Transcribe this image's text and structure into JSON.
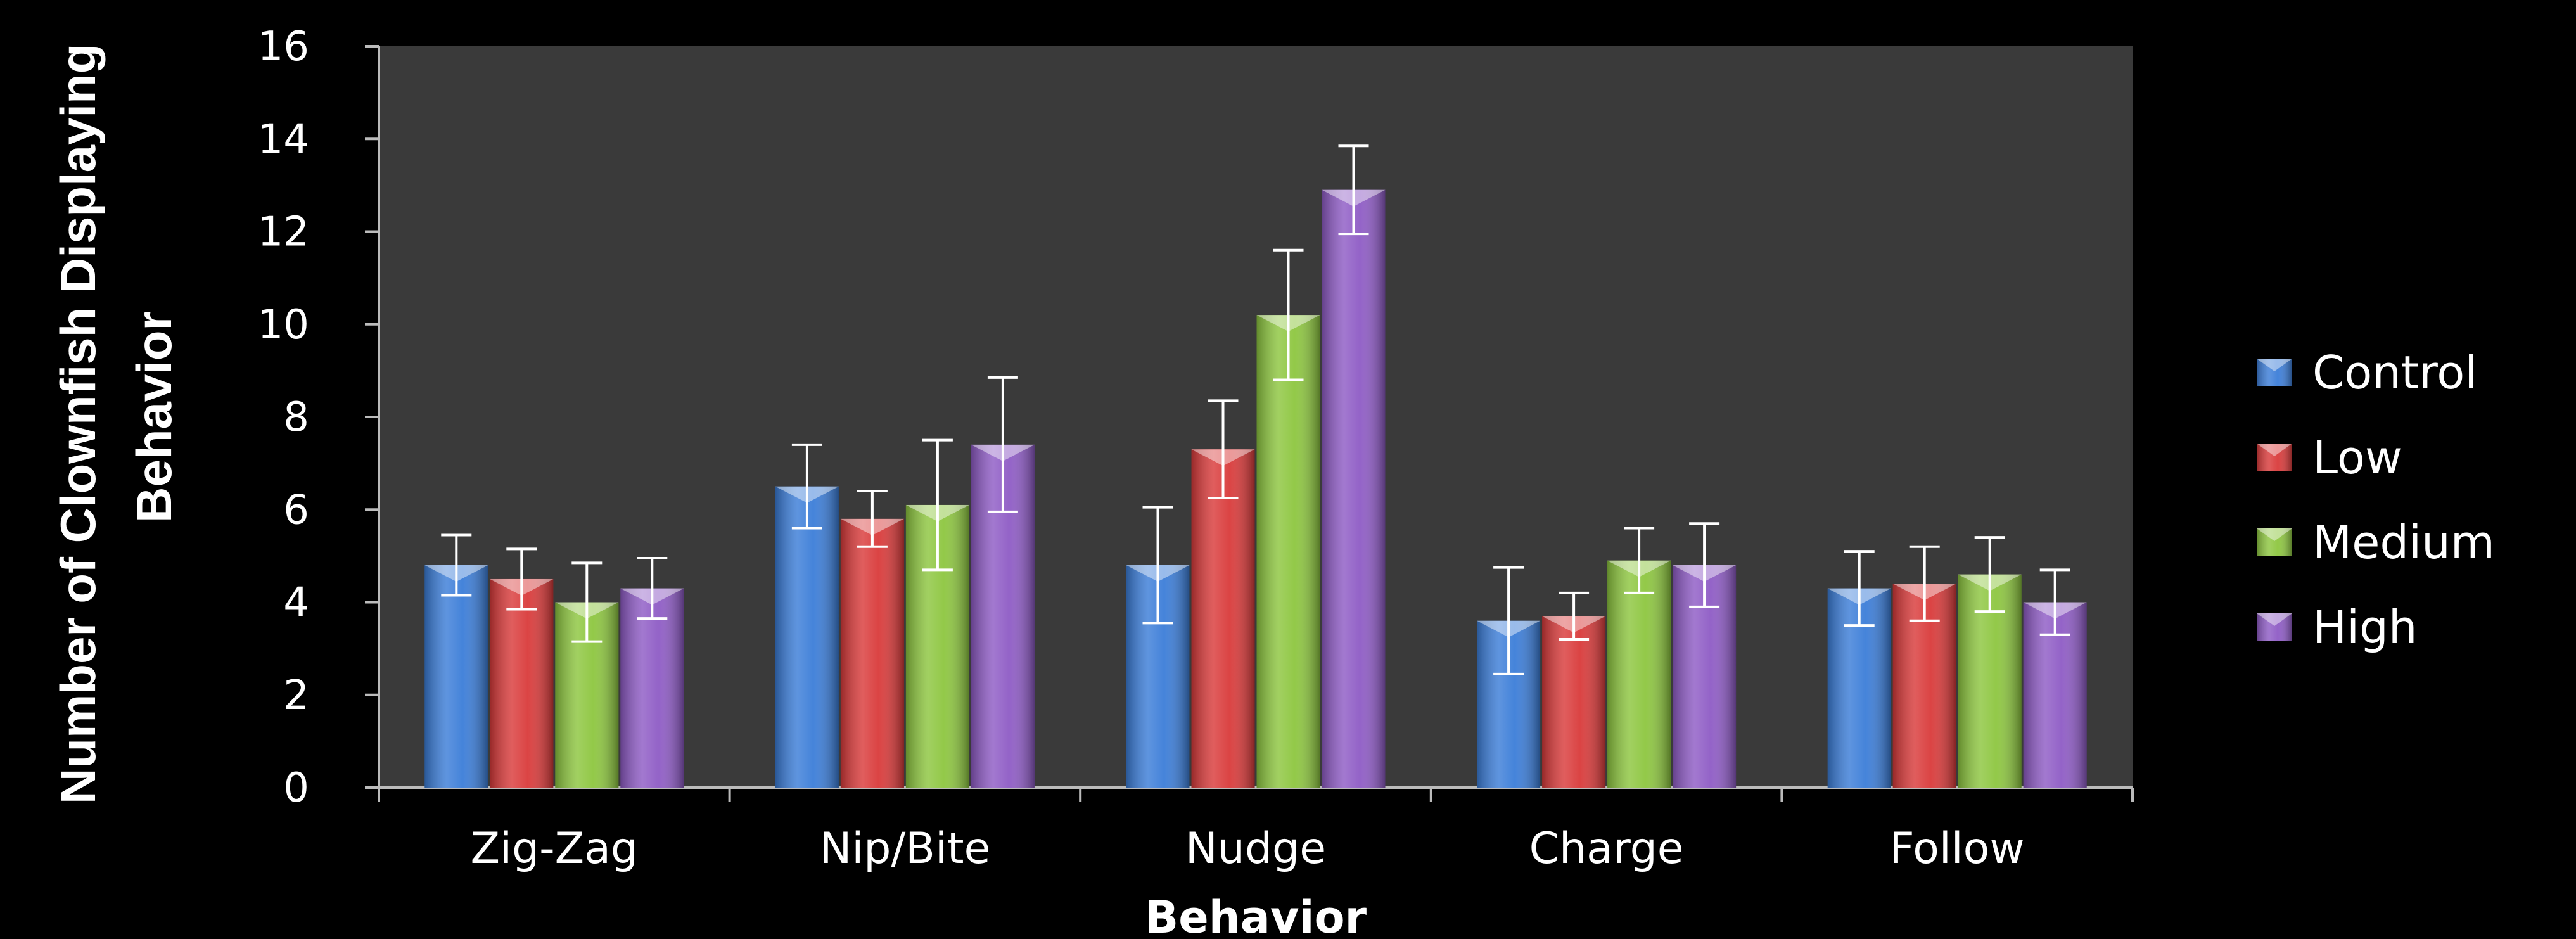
{
  "chart_data": {
    "type": "bar",
    "title": "",
    "xlabel": "Behavior",
    "ylabel_lines": [
      "Number of Clownfish Displaying",
      "Behavior"
    ],
    "ylim": [
      0,
      16
    ],
    "yticks": [
      0,
      2,
      4,
      6,
      8,
      10,
      12,
      14,
      16
    ],
    "grid": false,
    "legend_position": "right",
    "plot_background": "#3a3a3a",
    "background": "#000000",
    "categories": [
      "Zig-Zag",
      "Nip/Bite",
      "Nudge",
      "Charge",
      "Follow"
    ],
    "series": [
      {
        "name": "Control",
        "color": "#3b7dd8",
        "values": [
          4.8,
          6.5,
          4.8,
          3.6,
          4.3
        ],
        "errors": [
          0.65,
          0.9,
          1.25,
          1.15,
          0.8
        ]
      },
      {
        "name": "Low",
        "color": "#d93a3a",
        "values": [
          4.5,
          5.8,
          7.3,
          3.7,
          4.4
        ],
        "errors": [
          0.65,
          0.6,
          1.05,
          0.5,
          0.8
        ]
      },
      {
        "name": "Medium",
        "color": "#8dc63f",
        "values": [
          4.0,
          6.1,
          10.2,
          4.9,
          4.6
        ],
        "errors": [
          0.85,
          1.4,
          1.4,
          0.7,
          0.8
        ]
      },
      {
        "name": "High",
        "color": "#8e5bc5",
        "values": [
          4.3,
          7.4,
          12.9,
          4.8,
          4.0
        ],
        "errors": [
          0.65,
          1.45,
          0.95,
          0.9,
          0.7
        ]
      }
    ]
  }
}
